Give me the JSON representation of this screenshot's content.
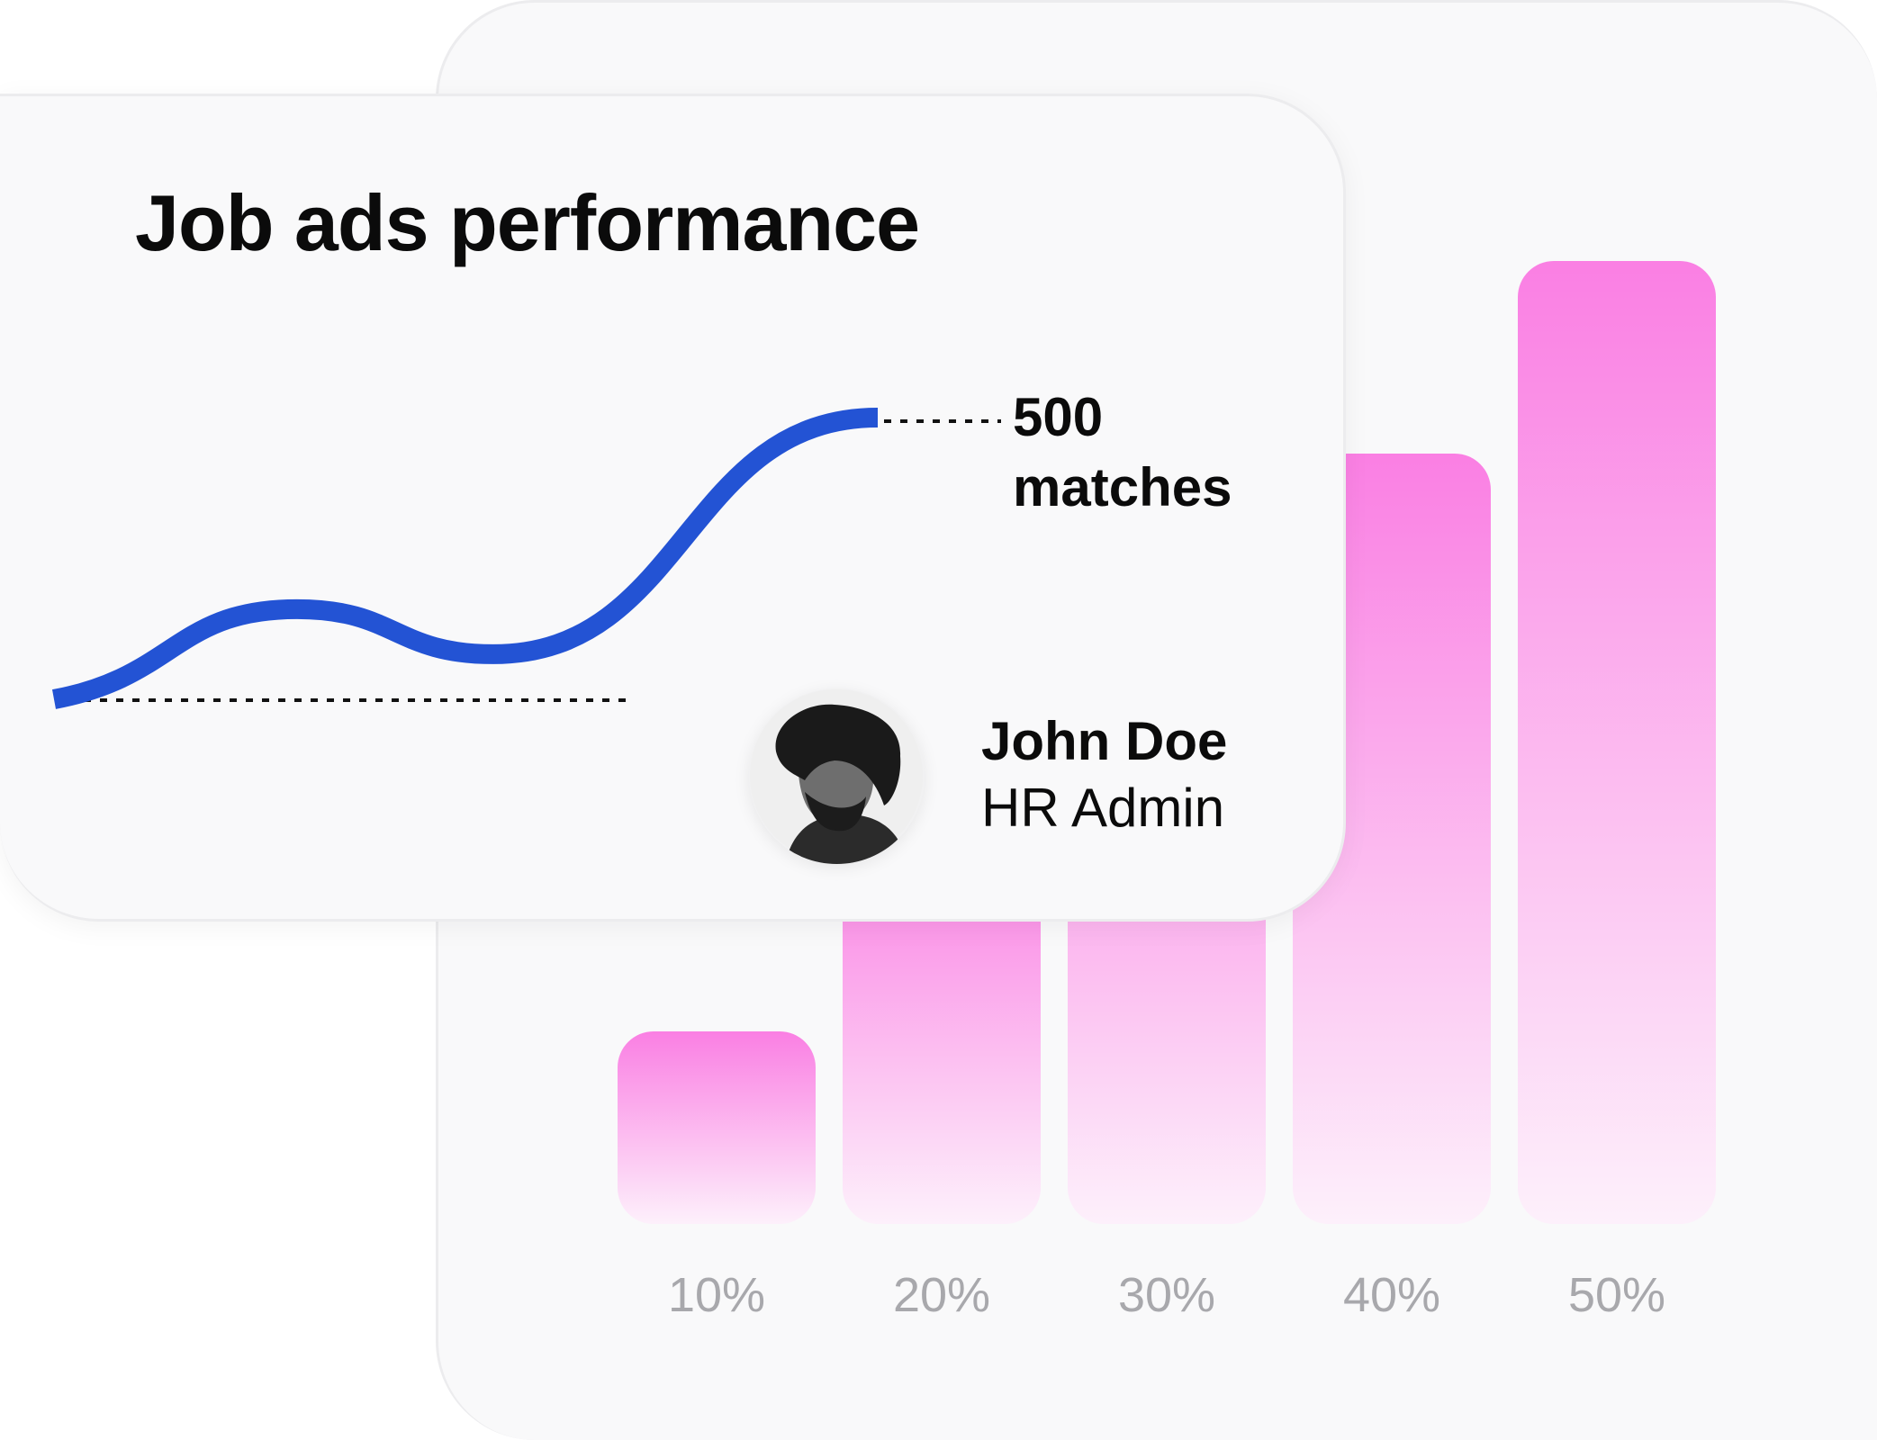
{
  "card": {
    "title": "Job ads performance",
    "highlight": {
      "value": "500",
      "unit": "matches"
    },
    "user": {
      "name": "John Doe",
      "role": "HR Admin"
    }
  },
  "colors": {
    "line": "#2353d4",
    "bar_top": "#fa7fe3",
    "bar_bottom": "#fdf0fb",
    "label": "#a8a8ac"
  },
  "chart_data": [
    {
      "type": "bar",
      "categories": [
        "10%",
        "20%",
        "30%",
        "40%",
        "50%"
      ],
      "values": [
        10,
        20,
        30,
        40,
        50
      ],
      "ylim": [
        0,
        50
      ],
      "grid": false
    },
    {
      "type": "line",
      "y_annotation": "500 matches",
      "series": [
        {
          "x": [
            0,
            1,
            2,
            3
          ],
          "values": [
            0,
            160,
            80,
            500
          ]
        }
      ],
      "ylim": [
        0,
        500
      ],
      "grid": false
    }
  ]
}
